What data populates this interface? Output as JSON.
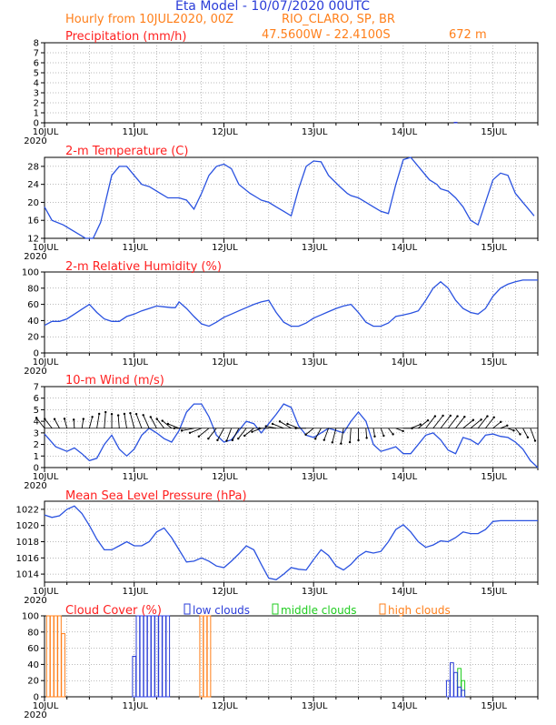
{
  "header": {
    "title": "Eta Model - 10/07/2020 00UTC",
    "line2_left": "Hourly from 10JUL2020, 00Z",
    "location": "RIO_CLARO, SP, BR",
    "coords": "47.5600W - 22.4100S",
    "elevation": "672  m",
    "title_color": "#2a3cd8",
    "accent_color": "#ff7f1a"
  },
  "xaxis": {
    "day_labels": [
      "10JUL",
      "11JUL",
      "12JUL",
      "13JUL",
      "14JUL",
      "15JUL"
    ],
    "year_label": "2020",
    "hours_per_day": 24,
    "total_hours": 132
  },
  "chart_data": [
    {
      "id": "precip",
      "type": "bar",
      "title": "Precipitation (mm/h)",
      "title_color": "#ff2020",
      "ylim": [
        0,
        8
      ],
      "yticks": [
        0,
        1,
        2,
        3,
        4,
        5,
        6,
        7,
        8
      ],
      "xlabel": "",
      "ylabel": "",
      "grid": true,
      "hours": [
        110
      ],
      "values": [
        0.05
      ]
    },
    {
      "id": "temp",
      "type": "line",
      "title": "2-m Temperature (C)",
      "title_color": "#ff2020",
      "ylim": [
        12,
        30
      ],
      "yticks": [
        12,
        16,
        20,
        24,
        28
      ],
      "grid": true,
      "line_color": "#2a52e0",
      "x": [
        0,
        2,
        5,
        8,
        11,
        13,
        15,
        16,
        18,
        20,
        22,
        24,
        26,
        28,
        31,
        33,
        34,
        36,
        38,
        40,
        42,
        44,
        46,
        48,
        50,
        52,
        55,
        57,
        58,
        60,
        62,
        64,
        66,
        68,
        70,
        72,
        74,
        76,
        79,
        81,
        82,
        84,
        86,
        88,
        90,
        92,
        94,
        96,
        98,
        100,
        103,
        105,
        106,
        108,
        110,
        112,
        114,
        116,
        118,
        120,
        122,
        124,
        126,
        128,
        130,
        131
      ],
      "y": [
        19,
        16,
        15,
        13.5,
        12,
        12,
        15.5,
        19,
        26,
        28,
        28,
        26,
        24,
        23.5,
        22,
        21,
        21,
        21,
        20.5,
        18.5,
        22,
        26,
        28,
        28.5,
        27.5,
        24,
        22,
        21,
        20.5,
        20,
        19,
        18,
        17,
        23,
        28,
        29.2,
        29,
        26,
        23.5,
        22,
        21.5,
        21,
        20,
        19,
        18,
        17.5,
        24,
        29.5,
        30,
        28,
        25,
        24,
        23,
        22.5,
        21,
        19,
        16,
        15,
        20,
        25,
        26.5,
        26,
        22,
        20,
        18,
        17
      ]
    },
    {
      "id": "rh",
      "type": "line",
      "title": "2-m Relative Humidity (%)",
      "title_color": "#ff2020",
      "ylim": [
        0,
        100
      ],
      "yticks": [
        0,
        20,
        40,
        60,
        80,
        100
      ],
      "grid": true,
      "line_color": "#2a52e0",
      "x": [
        0,
        2,
        4,
        6,
        8,
        10,
        12,
        14,
        16,
        18,
        20,
        22,
        24,
        26,
        28,
        30,
        32,
        34,
        35,
        36,
        38,
        40,
        42,
        44,
        46,
        48,
        50,
        52,
        54,
        56,
        58,
        60,
        62,
        64,
        66,
        68,
        70,
        72,
        74,
        76,
        78,
        80,
        82,
        84,
        86,
        88,
        90,
        92,
        94,
        96,
        98,
        100,
        102,
        104,
        106,
        108,
        110,
        112,
        114,
        116,
        118,
        120,
        122,
        124,
        126,
        128,
        130,
        132
      ],
      "y": [
        34,
        39,
        39,
        42,
        48,
        54,
        60,
        50,
        42,
        39,
        39,
        45,
        48,
        52,
        55,
        58,
        57,
        56,
        56,
        63,
        55,
        45,
        36,
        33,
        38,
        44,
        48,
        52,
        56,
        60,
        63,
        65,
        50,
        38,
        33,
        33,
        37,
        43,
        47,
        51,
        55,
        58,
        60,
        50,
        38,
        33,
        33,
        37,
        45,
        47,
        49,
        52,
        65,
        80,
        88,
        80,
        65,
        55,
        50,
        48,
        55,
        70,
        80,
        85,
        88,
        90,
        90,
        90
      ]
    },
    {
      "id": "wind",
      "type": "line",
      "title": "10-m Wind (m/s)",
      "title_color": "#ff2020",
      "ylim": [
        0,
        7
      ],
      "yticks": [
        0,
        1,
        2,
        3,
        4,
        5,
        6,
        7
      ],
      "grid": true,
      "line_color": "#2a52e0",
      "x": [
        0,
        3,
        6,
        8,
        10,
        12,
        14,
        16,
        18,
        20,
        22,
        24,
        26,
        28,
        30,
        32,
        34,
        36,
        38,
        40,
        42,
        44,
        46,
        48,
        50,
        52,
        54,
        56,
        58,
        60,
        62,
        64,
        66,
        68,
        70,
        72,
        74,
        76,
        78,
        80,
        82,
        84,
        86,
        88,
        90,
        92,
        94,
        96,
        98,
        100,
        102,
        104,
        106,
        108,
        110,
        112,
        114,
        116,
        118,
        120,
        122,
        124,
        126,
        128,
        130,
        132
      ],
      "y": [
        2.9,
        1.8,
        1.4,
        1.7,
        1.2,
        0.6,
        0.8,
        2.0,
        2.8,
        1.6,
        1.0,
        1.6,
        2.8,
        3.4,
        3.0,
        2.5,
        2.2,
        3.2,
        4.8,
        5.5,
        5.5,
        4.4,
        2.8,
        2.2,
        2.4,
        3.2,
        4.0,
        3.8,
        3.0,
        3.8,
        4.6,
        5.5,
        5.2,
        3.6,
        2.8,
        2.6,
        3.0,
        3.4,
        3.2,
        3.0,
        4.0,
        4.8,
        4.0,
        2.0,
        1.4,
        1.6,
        1.8,
        1.2,
        1.2,
        2.0,
        2.8,
        3.0,
        2.4,
        1.5,
        1.2,
        2.6,
        2.4,
        2.0,
        2.8,
        2.9,
        2.7,
        2.6,
        2.2,
        1.6,
        0.6,
        0.0
      ],
      "barbs_speed": [
        3.8,
        3.4,
        2.6,
        2.0,
        1.6,
        1.8,
        2.4,
        2.8,
        3.0,
        2.6,
        2.4,
        2.8,
        3.2,
        3.4,
        3.4,
        3.2,
        3.4,
        4.0,
        4.6,
        5.0,
        5.0,
        4.8,
        4.4,
        3.8,
        3.4,
        3.0,
        3.4,
        3.8,
        4.0,
        3.8,
        3.8,
        4.2,
        4.6,
        4.8,
        4.6,
        4.2,
        3.4,
        3.0,
        2.8,
        3.0,
        3.0,
        2.6,
        2.2,
        1.8,
        1.6,
        1.8,
        2.2,
        3.0,
        3.6,
        4.0,
        4.2,
        4.4,
        4.6,
        4.6,
        4.4,
        4.2,
        4.4,
        4.6,
        4.4,
        4.0,
        3.4,
        2.8,
        2.4,
        2.2,
        2.6,
        3.0
      ],
      "barbs_dir_deg": [
        300,
        300,
        310,
        330,
        350,
        20,
        30,
        20,
        10,
        0,
        350,
        340,
        330,
        320,
        315,
        310,
        300,
        290,
        280,
        270,
        265,
        260,
        250,
        240,
        230,
        220,
        230,
        240,
        250,
        260,
        270,
        275,
        280,
        285,
        280,
        270,
        250,
        230,
        220,
        210,
        200,
        190,
        180,
        170,
        160,
        140,
        120,
        100,
        90,
        80,
        70,
        60,
        60,
        60,
        60,
        60,
        70,
        70,
        60,
        60,
        70,
        80,
        100,
        120,
        130,
        140
      ]
    },
    {
      "id": "mslp",
      "type": "line",
      "title": "Mean Sea Level Pressure (hPa)",
      "title_color": "#ff2020",
      "ylim": [
        1013,
        1023
      ],
      "yticks": [
        1014,
        1016,
        1018,
        1020,
        1022
      ],
      "grid": true,
      "line_color": "#2a52e0",
      "x": [
        0,
        2,
        4,
        6,
        8,
        10,
        12,
        14,
        16,
        18,
        20,
        22,
        24,
        26,
        28,
        30,
        32,
        34,
        36,
        38,
        40,
        42,
        44,
        46,
        48,
        50,
        52,
        54,
        56,
        58,
        60,
        62,
        64,
        66,
        68,
        70,
        72,
        74,
        76,
        78,
        80,
        82,
        84,
        86,
        88,
        90,
        92,
        94,
        96,
        98,
        100,
        102,
        104,
        106,
        108,
        110,
        112,
        114,
        116,
        118,
        120,
        122,
        124,
        126,
        128,
        130,
        132
      ],
      "y": [
        1021.3,
        1021.0,
        1021.2,
        1022.0,
        1022.4,
        1021.5,
        1020.0,
        1018.3,
        1017.0,
        1017.0,
        1017.5,
        1018.0,
        1017.5,
        1017.5,
        1018.0,
        1019.2,
        1019.7,
        1018.5,
        1017.0,
        1015.5,
        1015.6,
        1016.0,
        1015.6,
        1015.0,
        1014.8,
        1015.6,
        1016.5,
        1017.5,
        1017.0,
        1015.2,
        1013.5,
        1013.3,
        1014.0,
        1014.8,
        1014.6,
        1014.5,
        1015.8,
        1017.0,
        1016.3,
        1015.0,
        1014.5,
        1015.2,
        1016.2,
        1016.8,
        1016.6,
        1016.8,
        1018.0,
        1019.5,
        1020.1,
        1019.2,
        1018.0,
        1017.3,
        1017.6,
        1018.1,
        1018.0,
        1018.5,
        1019.2,
        1019.0,
        1019.0,
        1019.5,
        1020.5,
        1020.6,
        1020.6,
        1020.6,
        1020.6,
        1020.6,
        1020.6
      ]
    },
    {
      "id": "cloud",
      "type": "bar",
      "title": "Cloud Cover (%)",
      "title_color": "#ff2020",
      "ylim": [
        0,
        100
      ],
      "yticks": [
        0,
        20,
        40,
        60,
        80,
        100
      ],
      "grid": true,
      "legend": [
        {
          "label": "low clouds",
          "color": "#2a3cd8"
        },
        {
          "label": "middle clouds",
          "color": "#1fcc1f"
        },
        {
          "label": "high clouds",
          "color": "#ff7f1a"
        }
      ],
      "series": [
        {
          "name": "low clouds",
          "color": "#2a3cd8",
          "hours": [
            24,
            25,
            26,
            27,
            28,
            29,
            30,
            31,
            32,
            33
          ],
          "values": [
            50,
            100,
            100,
            100,
            100,
            100,
            100,
            100,
            100,
            100
          ]
        },
        {
          "name": "middle clouds",
          "color": "#1fcc1f",
          "hours": [
            111,
            112
          ],
          "values": [
            35,
            20
          ]
        },
        {
          "name": "high clouds",
          "color": "#ff7f1a",
          "hours": [
            1,
            2,
            3,
            4,
            5,
            42,
            43,
            44
          ],
          "values": [
            100,
            100,
            100,
            100,
            78,
            100,
            100,
            100
          ]
        },
        {
          "name": "low clouds (2)",
          "color": "#2a3cd8",
          "hours": [
            108,
            109,
            110,
            111,
            112
          ],
          "values": [
            20,
            42,
            30,
            12,
            8
          ]
        }
      ]
    }
  ]
}
